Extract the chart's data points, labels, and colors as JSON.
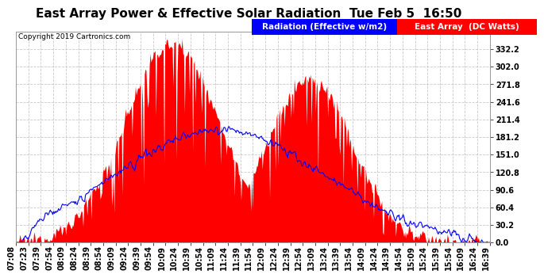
{
  "title": "East Array Power & Effective Solar Radiation  Tue Feb 5  16:50",
  "copyright": "Copyright 2019 Cartronics.com",
  "legend_radiation": "Radiation (Effective w/m2)",
  "legend_array": "East Array  (DC Watts)",
  "y_ticks": [
    0.0,
    30.2,
    60.4,
    90.6,
    120.8,
    151.0,
    181.2,
    211.4,
    241.6,
    271.8,
    302.0,
    332.2,
    362.4
  ],
  "y_max": 362.4,
  "y_min": 0.0,
  "background_color": "#ffffff",
  "plot_bg_color": "#ffffff",
  "grid_color": "#bbbbbb",
  "fill_color": "#ff0000",
  "line_color": "#0000ff",
  "x_labels": [
    "07:08",
    "07:23",
    "07:39",
    "07:54",
    "08:09",
    "08:24",
    "08:39",
    "08:54",
    "09:09",
    "09:24",
    "09:39",
    "09:54",
    "10:09",
    "10:24",
    "10:39",
    "10:54",
    "11:09",
    "11:24",
    "11:39",
    "11:54",
    "12:09",
    "12:24",
    "12:39",
    "12:54",
    "13:09",
    "13:24",
    "13:39",
    "13:54",
    "14:09",
    "14:24",
    "14:39",
    "14:54",
    "15:09",
    "15:24",
    "15:39",
    "15:54",
    "16:09",
    "16:24",
    "16:39"
  ],
  "title_fontsize": 11,
  "tick_fontsize": 7,
  "legend_fontsize": 7.5,
  "copyright_fontsize": 6.5,
  "n_points": 580
}
